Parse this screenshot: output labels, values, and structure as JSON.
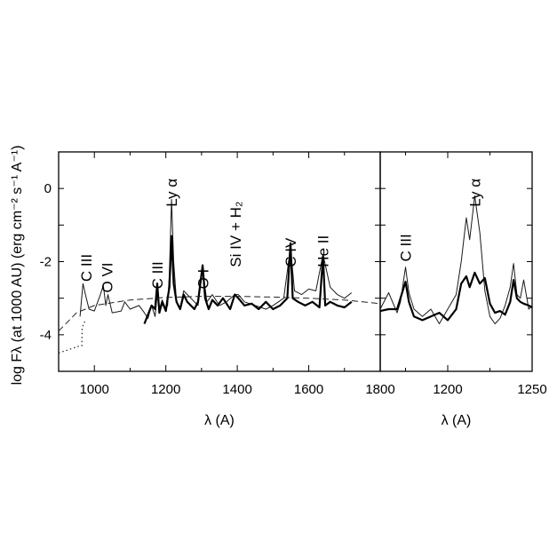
{
  "chart_data": [
    {
      "type": "line",
      "title": "",
      "xlabel": "λ (A)",
      "ylabel": "log Fλ (at 1000 AU) (erg cm⁻² s⁻¹ A⁻¹)",
      "xlim": [
        900,
        1800
      ],
      "ylim": [
        -5,
        1
      ],
      "x_ticks": [
        1000,
        1200,
        1400,
        1600,
        1800
      ],
      "y_ticks": [
        -4,
        -2,
        0
      ],
      "grid": false,
      "annotations": [
        {
          "text": "C III",
          "x": 977,
          "y": -2.55
        },
        {
          "text": "O VI",
          "x": 1035,
          "y": -2.85
        },
        {
          "text": "C III",
          "x": 1176,
          "y": -2.75
        },
        {
          "text": "Ly α",
          "x": 1216,
          "y": -0.5
        },
        {
          "text": "O I",
          "x": 1304,
          "y": -2.75
        },
        {
          "text": "Si IV + H₂",
          "x": 1395,
          "y": -2.15
        },
        {
          "text": "C IV",
          "x": 1549,
          "y": -2.15
        },
        {
          "text": "He II",
          "x": 1640,
          "y": -2.15
        }
      ],
      "series": [
        {
          "style": "thin",
          "x": [
            960,
            968,
            975,
            985,
            1000,
            1015,
            1025,
            1032,
            1038,
            1050,
            1075,
            1085,
            1100,
            1125,
            1140,
            1150,
            1160,
            1170,
            1176,
            1182,
            1190,
            1200,
            1205,
            1210,
            1216,
            1222,
            1230,
            1240,
            1250,
            1270,
            1290,
            1303,
            1315,
            1330,
            1350,
            1370,
            1393,
            1403,
            1420,
            1450,
            1480,
            1500,
            1530,
            1549,
            1560,
            1580,
            1600,
            1620,
            1640,
            1660,
            1680,
            1700,
            1720
          ],
          "y": [
            -3.5,
            -2.6,
            -2.9,
            -3.3,
            -3.35,
            -2.95,
            -2.65,
            -3.2,
            -2.9,
            -3.4,
            -3.35,
            -3.1,
            -3.3,
            -3.2,
            -3.4,
            -3.55,
            -3.2,
            -3.5,
            -2.9,
            -3.3,
            -3.05,
            -3.3,
            -3.2,
            -2.3,
            -0.3,
            -2.0,
            -3.1,
            -3.25,
            -2.8,
            -3.0,
            -3.2,
            -2.2,
            -3.1,
            -2.9,
            -3.2,
            -3.1,
            -2.9,
            -2.9,
            -3.1,
            -3.2,
            -3.3,
            -3.2,
            -3.0,
            -1.6,
            -2.8,
            -2.9,
            -2.75,
            -2.8,
            -1.8,
            -2.7,
            -2.9,
            -3.0,
            -2.85
          ]
        },
        {
          "style": "thick",
          "x": [
            1140,
            1150,
            1160,
            1170,
            1176,
            1182,
            1190,
            1200,
            1205,
            1210,
            1216,
            1222,
            1230,
            1240,
            1250,
            1260,
            1270,
            1280,
            1290,
            1303,
            1310,
            1320,
            1330,
            1345,
            1360,
            1380,
            1393,
            1403,
            1420,
            1440,
            1460,
            1480,
            1500,
            1520,
            1540,
            1549,
            1555,
            1570,
            1590,
            1610,
            1630,
            1640,
            1646,
            1660,
            1680,
            1700,
            1720
          ],
          "y": [
            -3.7,
            -3.45,
            -3.2,
            -3.3,
            -2.6,
            -3.4,
            -3.1,
            -3.35,
            -3.0,
            -2.7,
            -1.3,
            -2.6,
            -3.1,
            -3.3,
            -2.9,
            -3.1,
            -3.2,
            -3.3,
            -3.1,
            -2.1,
            -3.0,
            -3.3,
            -3.05,
            -3.2,
            -3.0,
            -3.3,
            -2.9,
            -3.0,
            -3.2,
            -3.15,
            -3.3,
            -3.1,
            -3.3,
            -3.2,
            -3.0,
            -1.5,
            -3.0,
            -3.1,
            -3.2,
            -3.1,
            -3.25,
            -1.85,
            -3.2,
            -3.1,
            -3.2,
            -3.25,
            -3.1
          ]
        },
        {
          "style": "dashed",
          "x": [
            900,
            950,
            1000,
            1100,
            1200,
            1300,
            1400,
            1500,
            1600,
            1700,
            1800
          ],
          "y": [
            -3.9,
            -3.4,
            -3.2,
            -3.05,
            -2.98,
            -2.95,
            -2.95,
            -2.97,
            -3.0,
            -3.05,
            -3.15
          ]
        },
        {
          "style": "dotted",
          "x": [
            900,
            930,
            960,
            965,
            966,
            975
          ],
          "y": [
            -4.5,
            -4.4,
            -4.3,
            -4.3,
            -3.8,
            -3.6
          ]
        }
      ]
    },
    {
      "type": "line",
      "title": "",
      "xlabel": "λ (A)",
      "ylabel": "",
      "xlim": [
        1160,
        1250
      ],
      "ylim": [
        -5,
        1
      ],
      "x_ticks": [
        1200,
        1250
      ],
      "grid": false,
      "annotations": [
        {
          "text": "C III",
          "x": 1175,
          "y": -2.0
        },
        {
          "text": "Ly α",
          "x": 1216,
          "y": -0.5
        }
      ],
      "series": [
        {
          "style": "thin",
          "x": [
            1160,
            1165,
            1170,
            1172,
            1175,
            1177,
            1180,
            1185,
            1190,
            1195,
            1200,
            1205,
            1208,
            1211,
            1213,
            1216,
            1219,
            1222,
            1225,
            1228,
            1231,
            1234,
            1237,
            1239,
            1241,
            1243,
            1245,
            1248,
            1250
          ],
          "y": [
            -3.3,
            -2.85,
            -3.4,
            -3.1,
            -2.15,
            -2.85,
            -3.3,
            -3.5,
            -3.3,
            -3.7,
            -3.3,
            -2.9,
            -2.0,
            -0.8,
            -1.4,
            -0.2,
            -1.2,
            -2.8,
            -3.5,
            -3.7,
            -3.55,
            -3.2,
            -2.7,
            -2.05,
            -2.9,
            -3.0,
            -2.5,
            -3.3,
            -3.2
          ]
        },
        {
          "style": "thick",
          "x": [
            1160,
            1165,
            1170,
            1172,
            1175,
            1177,
            1180,
            1185,
            1190,
            1195,
            1200,
            1205,
            1208,
            1211,
            1213,
            1216,
            1219,
            1222,
            1225,
            1228,
            1231,
            1234,
            1237,
            1239,
            1241,
            1243,
            1245,
            1248,
            1250
          ],
          "y": [
            -3.35,
            -3.3,
            -3.3,
            -3.0,
            -2.55,
            -3.1,
            -3.5,
            -3.6,
            -3.5,
            -3.4,
            -3.6,
            -3.3,
            -2.6,
            -2.4,
            -2.7,
            -2.3,
            -2.6,
            -2.45,
            -3.15,
            -3.4,
            -3.35,
            -3.45,
            -3.1,
            -2.5,
            -3.0,
            -3.1,
            -3.15,
            -3.2,
            -3.25
          ]
        }
      ]
    }
  ]
}
